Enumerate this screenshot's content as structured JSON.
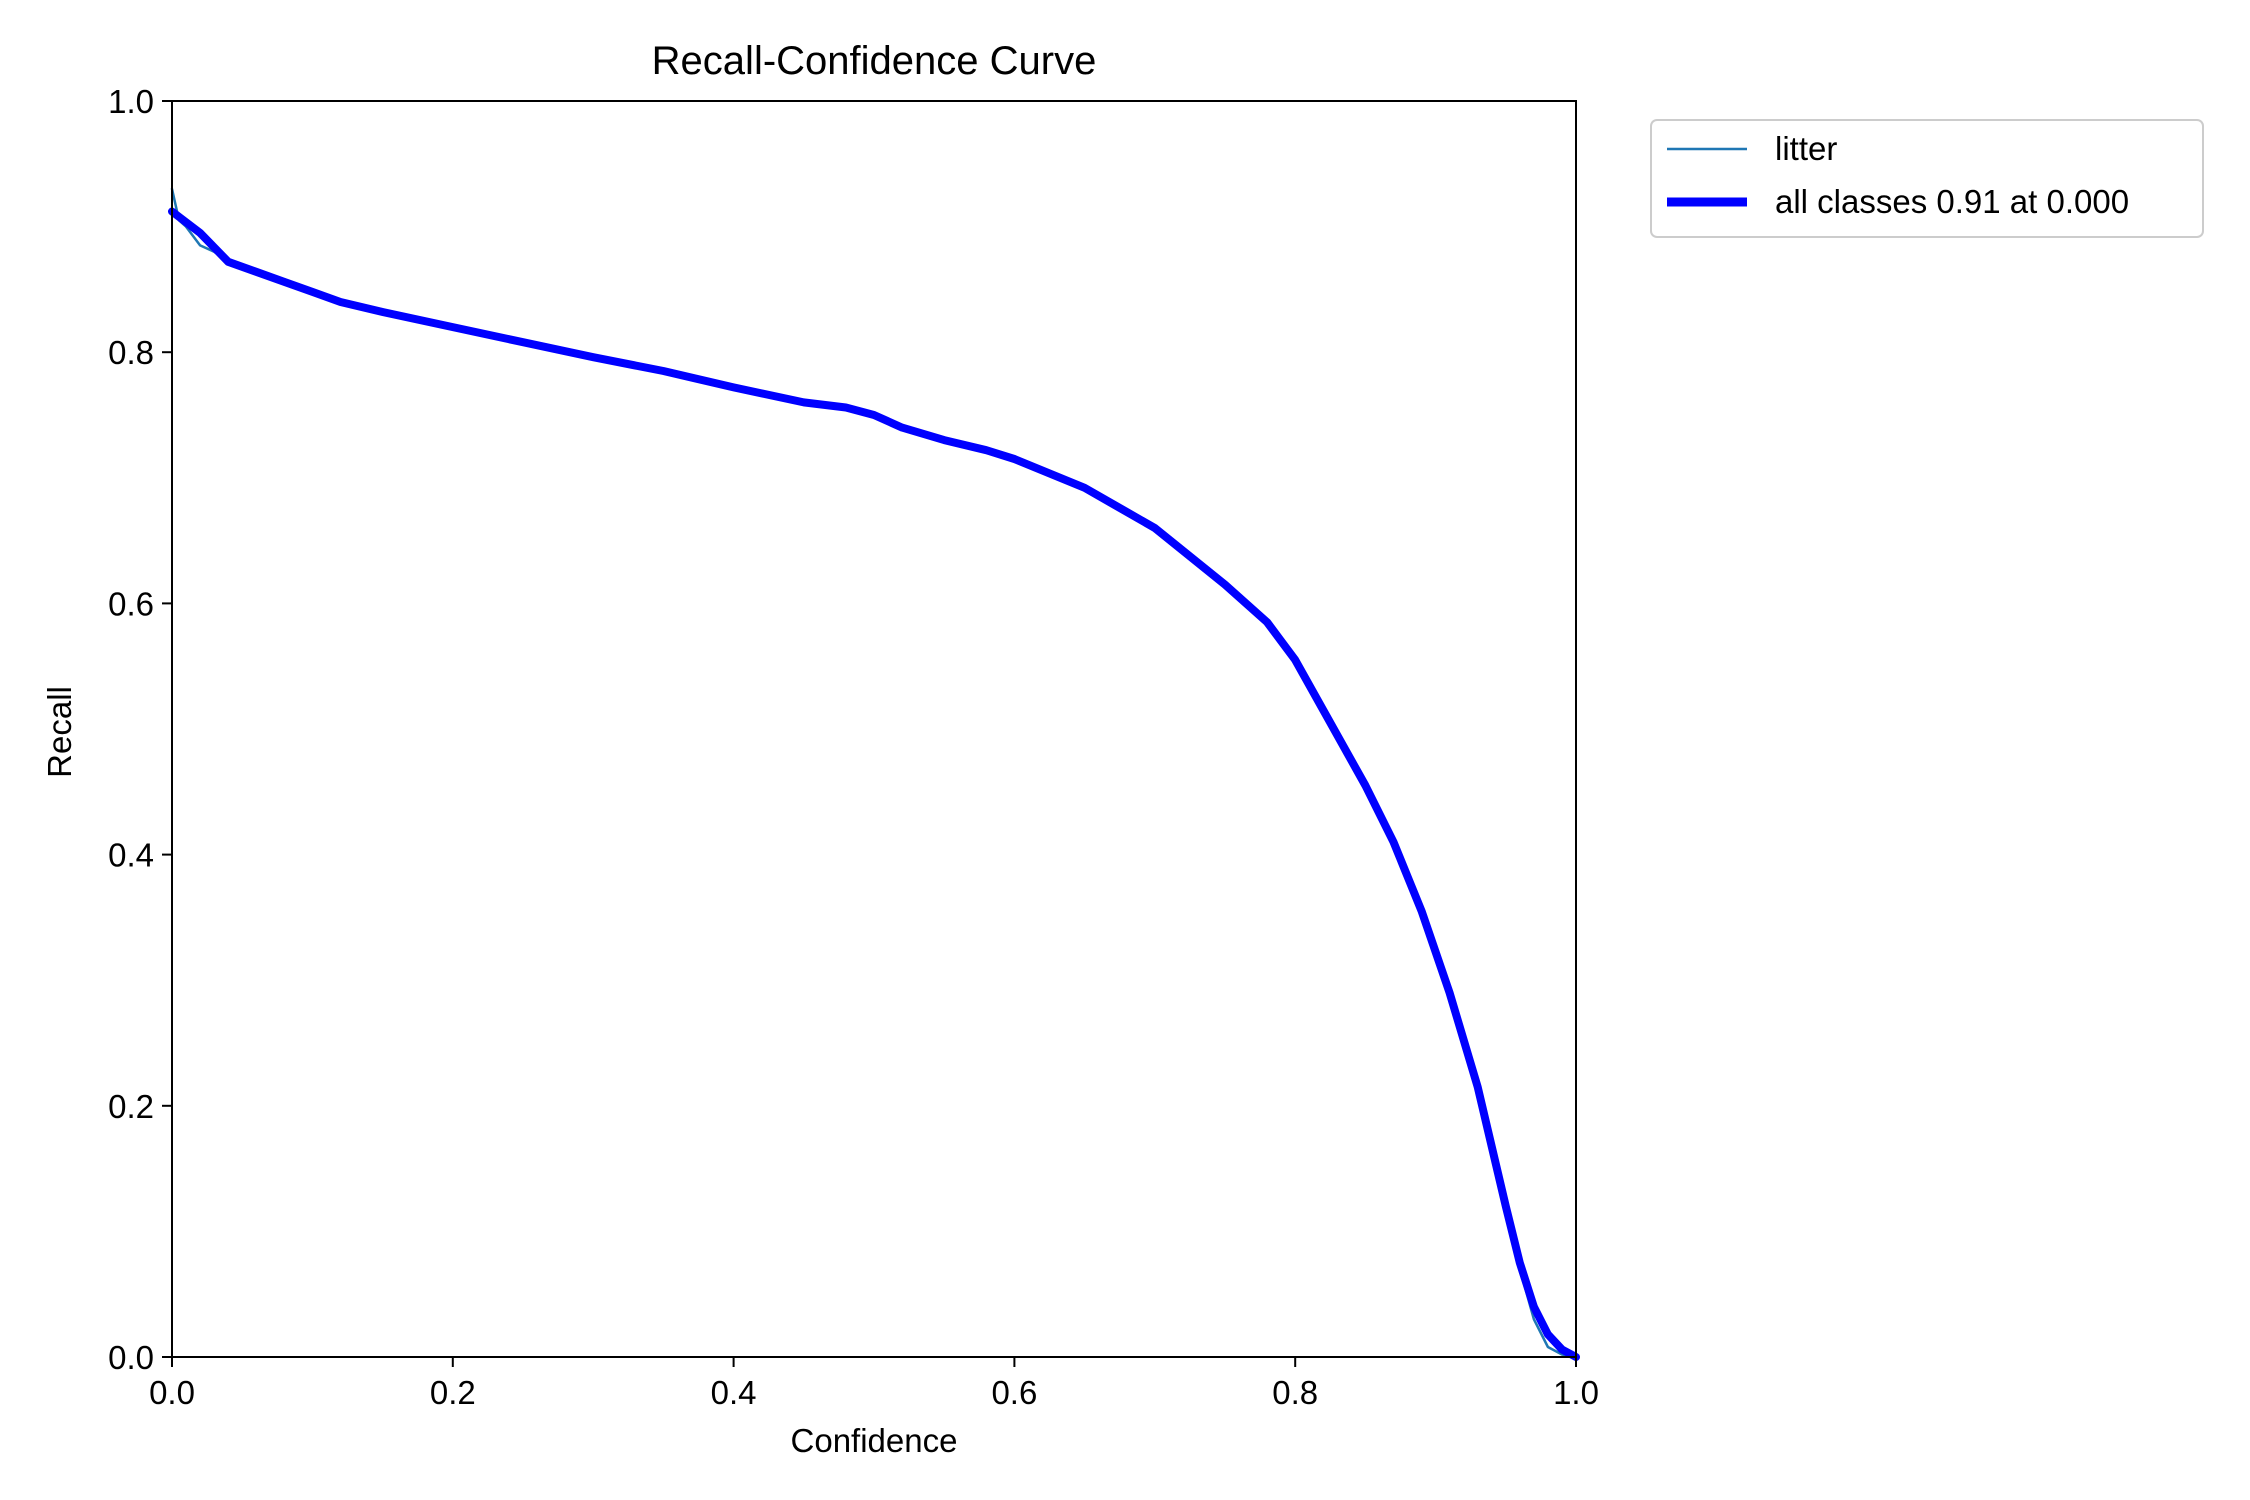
{
  "chart_data": {
    "type": "line",
    "title": "Recall-Confidence Curve",
    "xlabel": "Confidence",
    "ylabel": "Recall",
    "xlim": [
      0,
      1
    ],
    "ylim": [
      0,
      1
    ],
    "x_ticks": [
      "0.0",
      "0.2",
      "0.4",
      "0.6",
      "0.8",
      "1.0"
    ],
    "y_ticks": [
      "0.0",
      "0.2",
      "0.4",
      "0.6",
      "0.8",
      "1.0"
    ],
    "grid": false,
    "legend_position": "outside-top-right",
    "series": [
      {
        "name": "litter",
        "color": "#1f77b4",
        "points": [
          [
            0.0,
            0.93
          ],
          [
            0.005,
            0.905
          ],
          [
            0.01,
            0.9
          ],
          [
            0.02,
            0.885
          ],
          [
            0.03,
            0.88
          ],
          [
            0.04,
            0.872
          ],
          [
            0.06,
            0.864
          ],
          [
            0.08,
            0.856
          ],
          [
            0.1,
            0.848
          ],
          [
            0.12,
            0.84
          ],
          [
            0.15,
            0.832
          ],
          [
            0.2,
            0.82
          ],
          [
            0.25,
            0.808
          ],
          [
            0.3,
            0.796
          ],
          [
            0.35,
            0.785
          ],
          [
            0.4,
            0.772
          ],
          [
            0.45,
            0.76
          ],
          [
            0.48,
            0.756
          ],
          [
            0.5,
            0.75
          ],
          [
            0.52,
            0.74
          ],
          [
            0.55,
            0.73
          ],
          [
            0.58,
            0.722
          ],
          [
            0.6,
            0.715
          ],
          [
            0.65,
            0.692
          ],
          [
            0.7,
            0.66
          ],
          [
            0.75,
            0.615
          ],
          [
            0.78,
            0.585
          ],
          [
            0.8,
            0.555
          ],
          [
            0.82,
            0.515
          ],
          [
            0.85,
            0.455
          ],
          [
            0.87,
            0.41
          ],
          [
            0.89,
            0.355
          ],
          [
            0.91,
            0.29
          ],
          [
            0.93,
            0.215
          ],
          [
            0.95,
            0.12
          ],
          [
            0.96,
            0.07
          ],
          [
            0.97,
            0.03
          ],
          [
            0.98,
            0.008
          ],
          [
            0.99,
            0.002
          ],
          [
            1.0,
            0.0
          ]
        ]
      },
      {
        "name": "all classes 0.91 at 0.000",
        "color": "#0000ff",
        "points": [
          [
            0.0,
            0.912
          ],
          [
            0.02,
            0.895
          ],
          [
            0.04,
            0.872
          ],
          [
            0.06,
            0.864
          ],
          [
            0.08,
            0.856
          ],
          [
            0.1,
            0.848
          ],
          [
            0.12,
            0.84
          ],
          [
            0.15,
            0.832
          ],
          [
            0.2,
            0.82
          ],
          [
            0.25,
            0.808
          ],
          [
            0.3,
            0.796
          ],
          [
            0.35,
            0.785
          ],
          [
            0.4,
            0.772
          ],
          [
            0.45,
            0.76
          ],
          [
            0.48,
            0.756
          ],
          [
            0.5,
            0.75
          ],
          [
            0.52,
            0.74
          ],
          [
            0.55,
            0.73
          ],
          [
            0.58,
            0.722
          ],
          [
            0.6,
            0.715
          ],
          [
            0.65,
            0.692
          ],
          [
            0.7,
            0.66
          ],
          [
            0.75,
            0.615
          ],
          [
            0.78,
            0.585
          ],
          [
            0.8,
            0.555
          ],
          [
            0.82,
            0.515
          ],
          [
            0.85,
            0.455
          ],
          [
            0.87,
            0.41
          ],
          [
            0.89,
            0.355
          ],
          [
            0.91,
            0.29
          ],
          [
            0.93,
            0.215
          ],
          [
            0.95,
            0.12
          ],
          [
            0.96,
            0.075
          ],
          [
            0.97,
            0.04
          ],
          [
            0.98,
            0.018
          ],
          [
            0.99,
            0.006
          ],
          [
            1.0,
            0.0
          ]
        ]
      }
    ]
  }
}
